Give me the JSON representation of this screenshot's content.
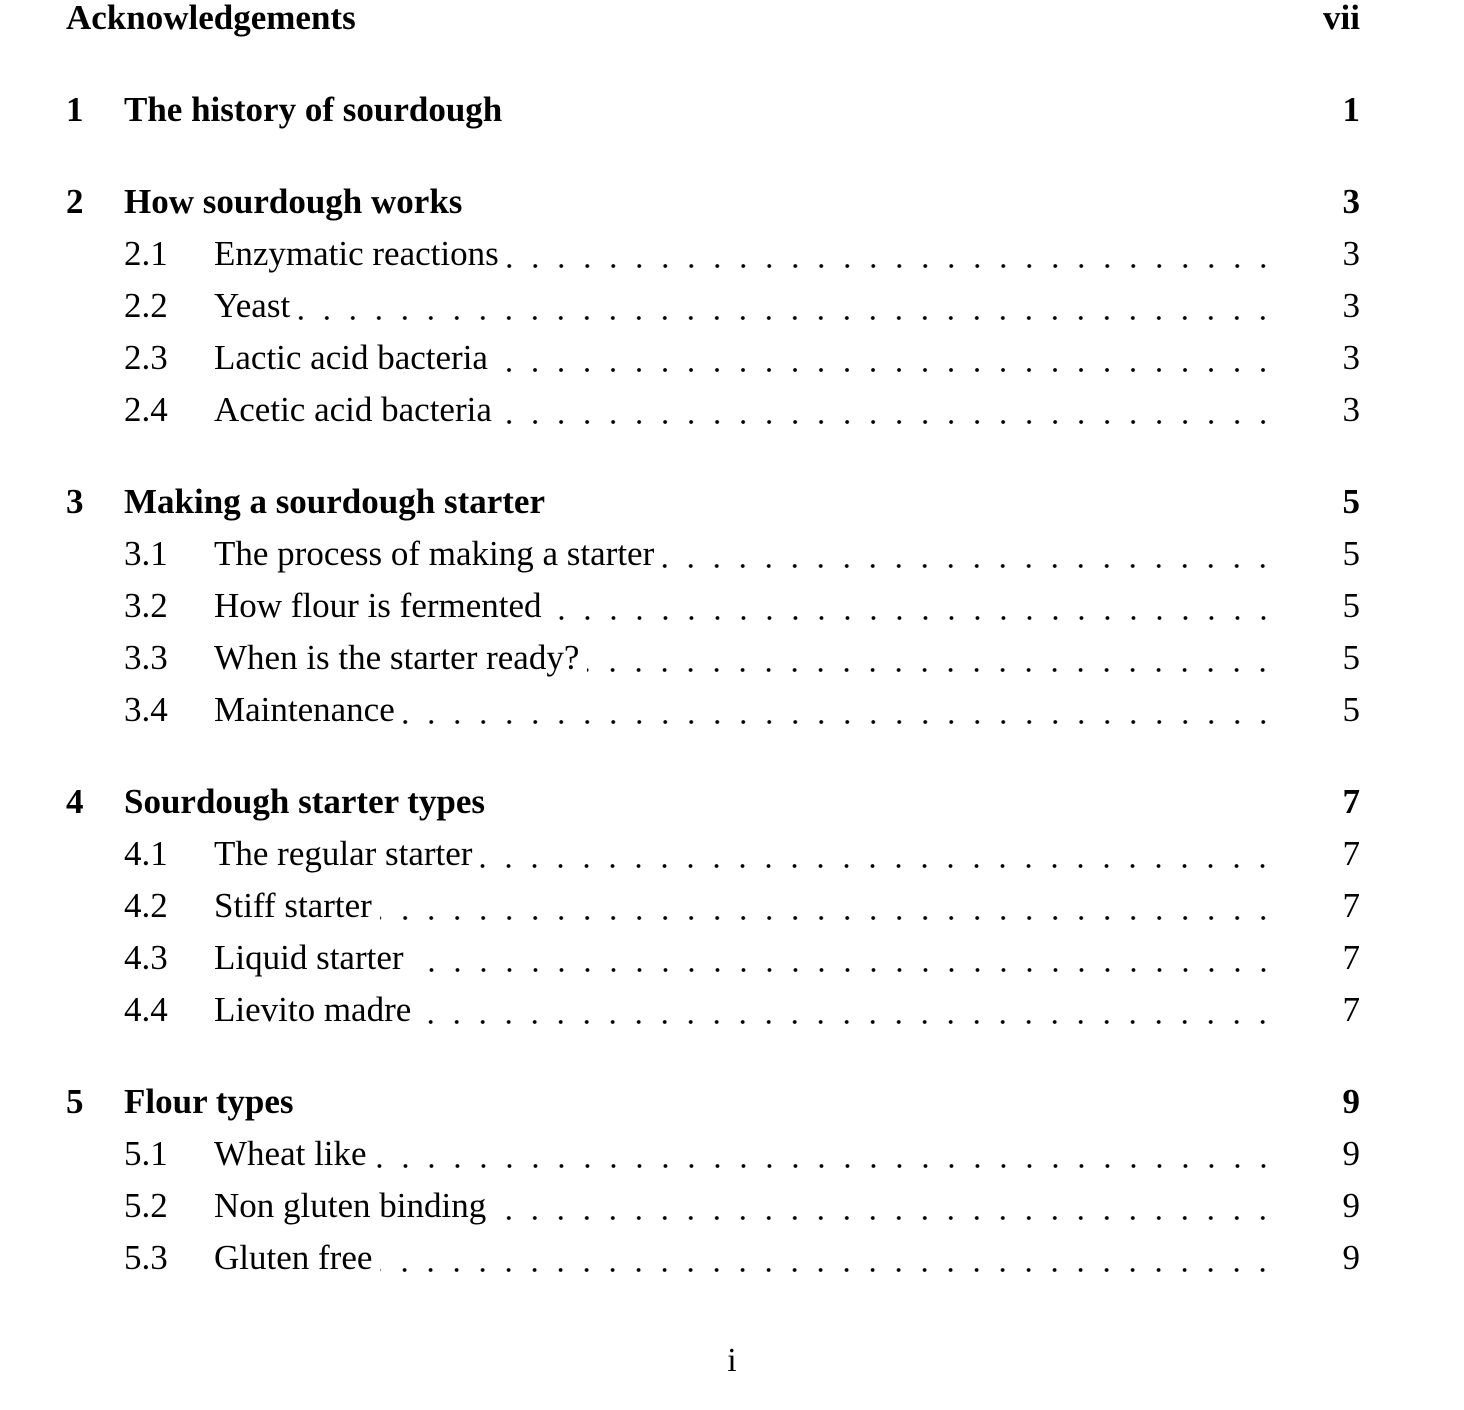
{
  "front": {
    "title": "Acknowledgements",
    "page": "vii"
  },
  "chapters": [
    {
      "num": "1",
      "title": "The history of sourdough",
      "page": "1",
      "sections": []
    },
    {
      "num": "2",
      "title": "How sourdough works",
      "page": "3",
      "sections": [
        {
          "num": "2.1",
          "title": "Enzymatic reactions",
          "page": "3"
        },
        {
          "num": "2.2",
          "title": "Yeast",
          "page": "3"
        },
        {
          "num": "2.3",
          "title": "Lactic acid bacteria",
          "page": "3"
        },
        {
          "num": "2.4",
          "title": "Acetic acid bacteria",
          "page": "3"
        }
      ]
    },
    {
      "num": "3",
      "title": "Making a sourdough starter",
      "page": "5",
      "sections": [
        {
          "num": "3.1",
          "title": "The process of making a starter",
          "page": "5"
        },
        {
          "num": "3.2",
          "title": "How flour is fermented",
          "page": "5"
        },
        {
          "num": "3.3",
          "title": "When is the starter ready?",
          "page": "5"
        },
        {
          "num": "3.4",
          "title": "Maintenance",
          "page": "5"
        }
      ]
    },
    {
      "num": "4",
      "title": "Sourdough starter types",
      "page": "7",
      "sections": [
        {
          "num": "4.1",
          "title": "The regular starter",
          "page": "7"
        },
        {
          "num": "4.2",
          "title": "Stiff starter",
          "page": "7"
        },
        {
          "num": "4.3",
          "title": "Liquid starter",
          "page": "7"
        },
        {
          "num": "4.4",
          "title": "Lievito madre",
          "page": "7"
        }
      ]
    },
    {
      "num": "5",
      "title": "Flour types",
      "page": "9",
      "sections": [
        {
          "num": "5.1",
          "title": "Wheat like",
          "page": "9"
        },
        {
          "num": "5.2",
          "title": "Non gluten binding",
          "page": "9"
        },
        {
          "num": "5.3",
          "title": "Gluten free",
          "page": "9"
        }
      ]
    }
  ],
  "folio": "i"
}
